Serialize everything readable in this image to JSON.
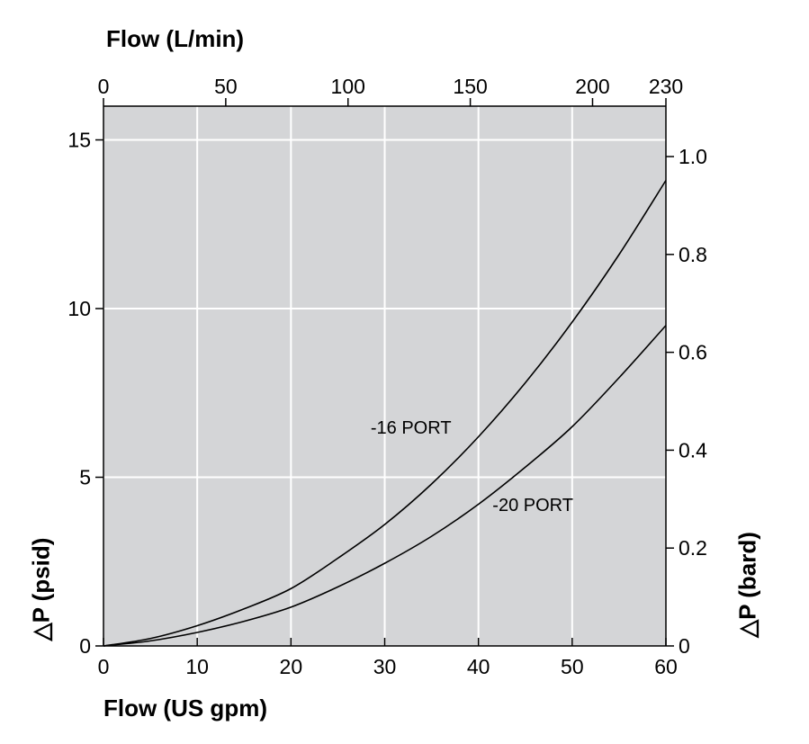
{
  "chart_data": {
    "type": "line",
    "top_axis_title": "Flow (L/min)",
    "bottom_axis_title": "Flow (US gpm)",
    "left_axis_title": "△P (psid)",
    "right_axis_title": "△P (bard)",
    "x": {
      "unit": "US gpm",
      "lim": [
        0,
        60
      ],
      "ticks": [
        0,
        10,
        20,
        30,
        40,
        50,
        60
      ],
      "grid": true
    },
    "x_top": {
      "unit": "L/min",
      "lim": [
        0,
        230
      ],
      "ticks": [
        0,
        50,
        100,
        150,
        200,
        230
      ],
      "tick_labels": [
        "0",
        "50",
        "100",
        "150",
        "200",
        "230"
      ]
    },
    "y": {
      "unit": "psid",
      "lim": [
        0,
        16
      ],
      "ticks": [
        0,
        5,
        10,
        15
      ],
      "grid": true
    },
    "y_right": {
      "unit": "bard",
      "lim": [
        0,
        1.103
      ],
      "ticks": [
        0,
        0.2,
        0.4,
        0.6,
        0.8,
        1.0
      ],
      "tick_labels": [
        "0",
        "0.2",
        "0.4",
        "0.6",
        "0.8",
        "1.0"
      ]
    },
    "plot_background": "#d4d5d7",
    "grid_color": "#ffffff",
    "line_color": "#000000",
    "series": [
      {
        "name": "-16 PORT",
        "x": [
          0,
          5,
          10,
          15,
          20,
          25,
          30,
          35,
          40,
          45,
          50,
          55,
          60
        ],
        "y": [
          0,
          0.22,
          0.6,
          1.1,
          1.7,
          2.6,
          3.6,
          4.8,
          6.2,
          7.8,
          9.6,
          11.6,
          13.8
        ]
      },
      {
        "name": "-20 PORT",
        "x": [
          0,
          5,
          10,
          15,
          20,
          25,
          30,
          35,
          40,
          45,
          50,
          55,
          60
        ],
        "y": [
          0,
          0.15,
          0.4,
          0.73,
          1.15,
          1.75,
          2.45,
          3.25,
          4.2,
          5.3,
          6.5,
          7.95,
          9.5
        ]
      }
    ]
  }
}
